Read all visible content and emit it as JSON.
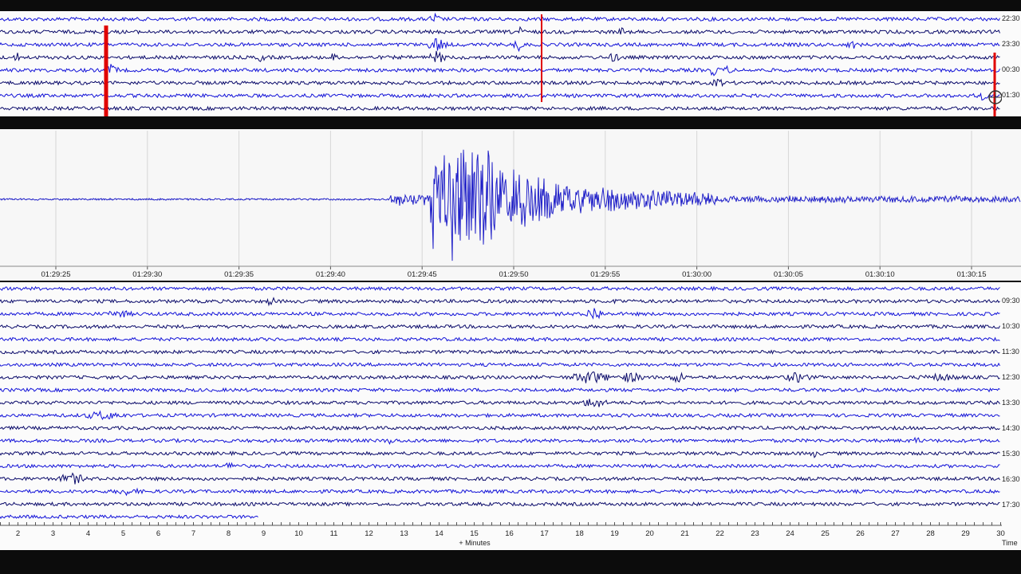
{
  "top_helicorder": {
    "hour_labels": [
      "22:30",
      "23:30",
      "00:30",
      "01:30"
    ],
    "trace_color": "#1212d8",
    "alt_trace_color": "#0a0a6a",
    "event_marker_color": "#e00000"
  },
  "zoom_trace": {
    "time_ticks": [
      "01:29:25",
      "01:29:30",
      "01:29:35",
      "01:29:40",
      "01:29:45",
      "01:29:50",
      "01:29:55",
      "01:30:00",
      "01:30:05",
      "01:30:10",
      "01:30:15"
    ],
    "trace_color": "#2020c8"
  },
  "bottom_helicorder": {
    "hour_labels": [
      "09:30",
      "10:30",
      "11:30",
      "12:30",
      "13:30",
      "14:30",
      "15:30",
      "16:30",
      "17:30"
    ],
    "minute_ticks": [
      "2",
      "3",
      "4",
      "5",
      "6",
      "7",
      "8",
      "9",
      "10",
      "11",
      "12",
      "13",
      "14",
      "15",
      "16",
      "17",
      "18",
      "19",
      "20",
      "21",
      "22",
      "23",
      "24",
      "25",
      "26",
      "27",
      "28",
      "29",
      "30"
    ],
    "x_axis_label": "+ Minutes",
    "right_axis_label": "Time",
    "trace_color": "#1212d8",
    "alt_trace_color": "#0a0a6a"
  }
}
